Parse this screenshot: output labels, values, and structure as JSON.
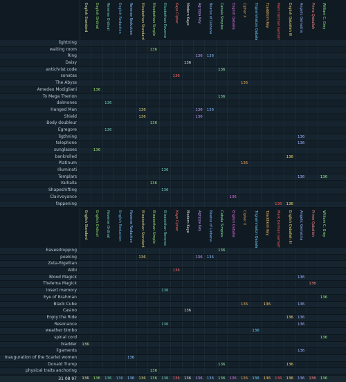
{
  "columns": [
    {
      "name": "English Standard",
      "color": "#e8e6a0"
    },
    {
      "name": "English Ordinal",
      "color": "#9de06f"
    },
    {
      "name": "Reverse Ordinal",
      "color": "#6fd0b8"
    },
    {
      "name": "English Reduction",
      "color": "#5fb0e0"
    },
    {
      "name": "Reverse Reduction",
      "color": "#8fc0ff"
    },
    {
      "name": "Elizabethan Standard",
      "color": "#e0d080"
    },
    {
      "name": "Elizabethan Simple",
      "color": "#9de06f"
    },
    {
      "name": "Elizabethan Reverse",
      "color": "#6fd0b8"
    },
    {
      "name": "Kaye Cipher",
      "color": "#ff6a6a"
    },
    {
      "name": "Modern Kaye",
      "color": "#e0e0e0"
    },
    {
      "name": "Agrippa Key",
      "color": "#c89cff"
    },
    {
      "name": "Beatus of Liebana",
      "color": "#7fb6ff"
    },
    {
      "name": "Cabala Simplex",
      "color": "#8fe0a0"
    },
    {
      "name": "English Qaballa",
      "color": "#e06fe0"
    },
    {
      "name": "Cipher X",
      "color": "#e8a050"
    },
    {
      "name": "Trigrammaton Qabalah",
      "color": "#6fd0ff"
    },
    {
      "name": "Tzaddikim Key",
      "color": "#ffc060"
    },
    {
      "name": "Mark Iterman Gematria",
      "color": "#ff5a5a"
    },
    {
      "name": "English Qaballah III",
      "color": "#ffd86f"
    },
    {
      "name": "Angelic Gematria",
      "color": "#a0b0ff"
    },
    {
      "name": "Prime Qaballah",
      "color": "#ff8a8a"
    },
    {
      "name": "William C. Grey",
      "color": "#8ff07f"
    }
  ],
  "table1": [
    {
      "label": "lightning",
      "hits": []
    },
    {
      "label": "waiting room",
      "hits": [
        [
          6,
          "136"
        ]
      ]
    },
    {
      "label": "Ring",
      "hits": [
        [
          10,
          "136"
        ],
        [
          11,
          "136"
        ]
      ]
    },
    {
      "label": "Daisy",
      "hits": [
        [
          9,
          "136"
        ]
      ]
    },
    {
      "label": "antichrist code",
      "hits": [
        [
          12,
          "136"
        ]
      ]
    },
    {
      "label": "sonatas",
      "hits": [
        [
          8,
          "136"
        ]
      ]
    },
    {
      "label": "The Abyss",
      "hits": [
        [
          14,
          "136"
        ]
      ]
    },
    {
      "label": "Amedeo Modigliani",
      "hits": [
        [
          1,
          "136"
        ]
      ]
    },
    {
      "label": "To Mega Therion",
      "hits": [
        [
          12,
          "136"
        ]
      ]
    },
    {
      "label": "dalmones",
      "hits": [
        [
          2,
          "136"
        ]
      ]
    },
    {
      "label": "Hanged Man",
      "hits": [
        [
          5,
          "136"
        ],
        [
          10,
          "136"
        ],
        [
          11,
          "136"
        ]
      ]
    },
    {
      "label": "Shield",
      "hits": [
        [
          5,
          "136"
        ],
        [
          10,
          "136"
        ]
      ]
    },
    {
      "label": "Body doubleur",
      "hits": [
        [
          6,
          "136"
        ]
      ]
    },
    {
      "label": "Egregore",
      "hits": [
        [
          2,
          "136"
        ]
      ]
    },
    {
      "label": "ligthning",
      "hits": [
        [
          19,
          "136"
        ]
      ]
    },
    {
      "label": "telephone",
      "hits": [
        [
          19,
          "136"
        ]
      ]
    },
    {
      "label": "sunglasses",
      "hits": [
        [
          1,
          "136"
        ]
      ]
    },
    {
      "label": "bankrolled",
      "hits": [
        [
          18,
          "136"
        ]
      ]
    },
    {
      "label": "Platinum",
      "hits": [
        [
          14,
          "136"
        ]
      ]
    },
    {
      "label": "Illuminati",
      "hits": [
        [
          7,
          "136"
        ]
      ]
    },
    {
      "label": "Templars",
      "hits": [
        [
          19,
          "136"
        ],
        [
          21,
          "136"
        ]
      ]
    },
    {
      "label": "Valhalla",
      "hits": [
        [
          6,
          "136"
        ]
      ]
    },
    {
      "label": "Shapeshifting",
      "hits": [
        [
          7,
          "136"
        ]
      ]
    },
    {
      "label": "Clairvoyance",
      "hits": [
        [
          13,
          "136"
        ]
      ]
    },
    {
      "label": "fappening",
      "hits": [
        [
          17,
          "136"
        ],
        [
          18,
          "136"
        ]
      ]
    }
  ],
  "table2": [
    {
      "label": "Eavesdropping",
      "hits": [
        [
          12,
          "136"
        ]
      ]
    },
    {
      "label": "peeking",
      "hits": [
        [
          5,
          "136"
        ],
        [
          10,
          "136"
        ],
        [
          11,
          "136"
        ]
      ]
    },
    {
      "label": "Zeta-Rigellian",
      "hits": []
    },
    {
      "label": "Alibi",
      "hits": [
        [
          8,
          "136"
        ]
      ]
    },
    {
      "label": "Blood Magick",
      "hits": [
        [
          19,
          "136"
        ]
      ]
    },
    {
      "label": "Thelema Magick",
      "hits": [
        [
          20,
          "136"
        ]
      ]
    },
    {
      "label": "Insert memory",
      "hits": [
        [
          7,
          "136"
        ]
      ]
    },
    {
      "label": "Eye of Brahman",
      "hits": [
        [
          21,
          "136"
        ]
      ]
    },
    {
      "label": "Black Cube",
      "hits": [
        [
          14,
          "136"
        ],
        [
          16,
          "136"
        ],
        [
          19,
          "136"
        ]
      ]
    },
    {
      "label": "Casino",
      "hits": [
        [
          9,
          "136"
        ]
      ]
    },
    {
      "label": "Enjoy the Ride",
      "hits": [
        [
          18,
          "136"
        ],
        [
          19,
          "136"
        ]
      ]
    },
    {
      "label": "Resonance",
      "hits": [
        [
          7,
          "136"
        ],
        [
          19,
          "136"
        ]
      ]
    },
    {
      "label": "weather bimbo",
      "hits": [
        [
          15,
          "136"
        ]
      ]
    },
    {
      "label": "spinal cord",
      "hits": [
        [
          21,
          "136"
        ]
      ]
    },
    {
      "label": "bladder",
      "hits": [
        [
          0,
          "136"
        ]
      ]
    },
    {
      "label": "ligaments",
      "hits": [
        [
          19,
          "136"
        ]
      ]
    },
    {
      "label": "Inauguration of the Scarlet women",
      "hits": [
        [
          4,
          "136"
        ]
      ]
    },
    {
      "label": "Donald Trump",
      "hits": [
        [
          12,
          "136"
        ],
        [
          18,
          "136"
        ]
      ]
    },
    {
      "label": "physical traits anchoring",
      "hits": [
        [
          6,
          "136"
        ]
      ]
    }
  ],
  "totals": {
    "label": "31 08 97",
    "value": "136"
  }
}
